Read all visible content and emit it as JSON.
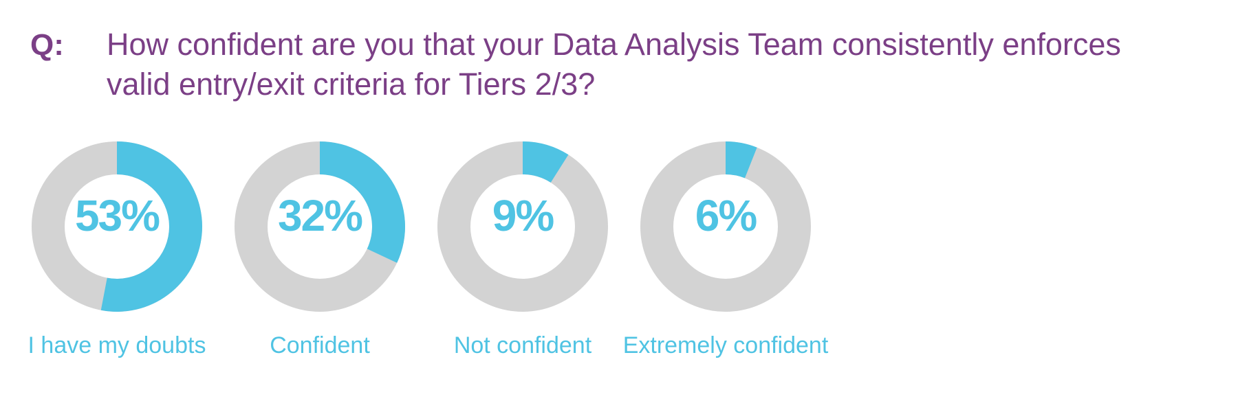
{
  "question_marker": "Q:",
  "question": "How confident are you that your Data Analysis Team consistently enforces valid entry/exit criteria for Tiers 2/3?",
  "colors": {
    "accent": "#4fc3e3",
    "track": "#d3d3d3",
    "title": "#7b3f86"
  },
  "chart_data": {
    "type": "pie",
    "variant": "donut",
    "title": "How confident are you that your Data Analysis Team consistently enforces valid entry/exit criteria for Tiers 2/3?",
    "categories": [
      "I have my doubts",
      "Confident",
      "Not confident",
      "Extremely confident"
    ],
    "values": [
      53,
      32,
      9,
      6
    ],
    "value_labels": [
      "53%",
      "32%",
      "9%",
      "6%"
    ],
    "unit": "%"
  }
}
